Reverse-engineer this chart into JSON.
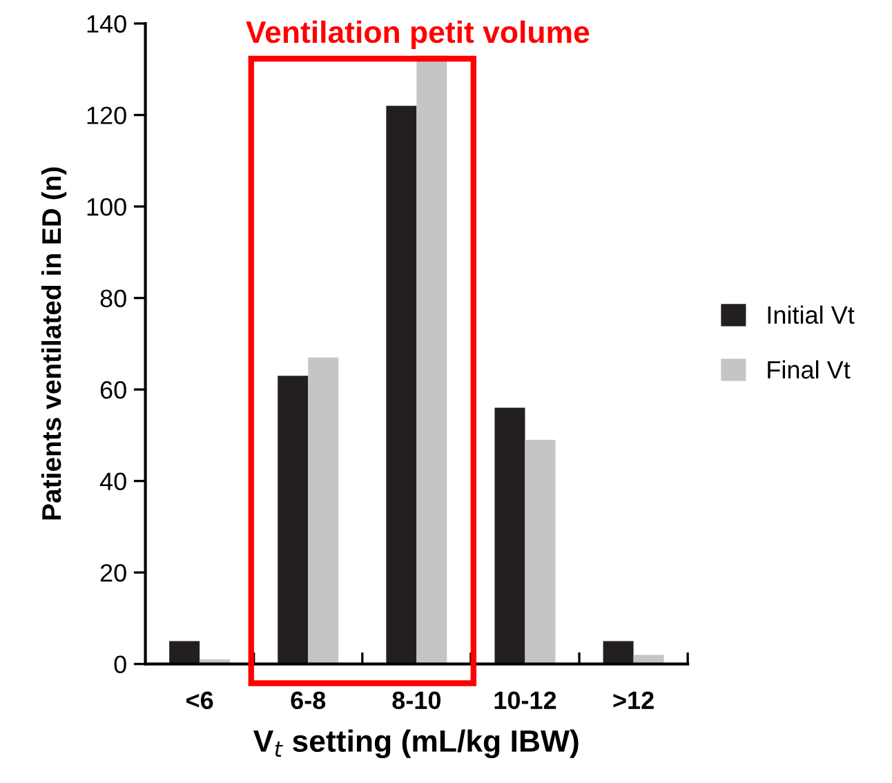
{
  "chart_data": {
    "type": "bar",
    "categories": [
      "<6",
      "6-8",
      "8-10",
      "10-12",
      ">12"
    ],
    "series": [
      {
        "name": "Initial Vt",
        "color": "#231f20",
        "values": [
          5,
          63,
          122,
          56,
          5
        ]
      },
      {
        "name": "Final Vt",
        "color": "#c4c5c7",
        "values": [
          1,
          67,
          133,
          49,
          2
        ]
      }
    ],
    "xlabel": "V$_{t}$ setting (mL/kg IBW)",
    "ylabel": "Patients ventilated in ED (n)",
    "ylim": [
      0,
      140
    ],
    "yticks": [
      0,
      20,
      40,
      60,
      80,
      100,
      120,
      140
    ],
    "grid": false,
    "legend": "right",
    "annotations": [
      "Ventilation petit volume"
    ]
  }
}
